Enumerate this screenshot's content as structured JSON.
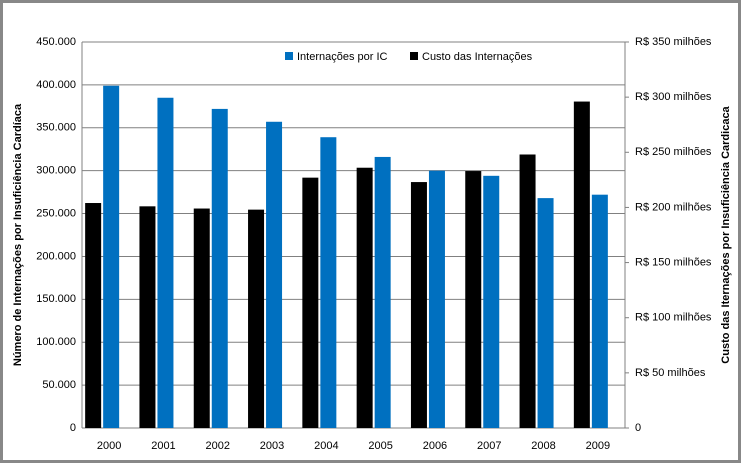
{
  "chart_data": {
    "type": "bar",
    "categories": [
      "2000",
      "2001",
      "2002",
      "2003",
      "2004",
      "2005",
      "2006",
      "2007",
      "2008",
      "2009"
    ],
    "series": [
      {
        "name": "Internações por IC",
        "color": "#0070c0",
        "values": [
          399000,
          385000,
          372000,
          357000,
          339000,
          316000,
          300000,
          294000,
          268000,
          272000
        ]
      },
      {
        "name": "Custo das Internações",
        "color": "#000000",
        "axis": "y2",
        "values": [
          204000000,
          201000000,
          199000000,
          198000000,
          227000000,
          236000000,
          223000000,
          233000000,
          248000000,
          296000000
        ]
      }
    ],
    "y_label": "Número de Internações por Insuficiência Cardíaca",
    "y2_label": "Custo das Iternações por Insuficiência Cardicaca",
    "ylim": [
      0,
      450000
    ],
    "yticks": [
      0,
      {
        "value": 50000,
        "label": "50.000"
      },
      {
        "value": 100000,
        "label": "100.000"
      },
      {
        "value": 150000,
        "label": "150.000"
      },
      {
        "value": 200000,
        "label": "200.000"
      },
      {
        "value": 250000,
        "label": "250.000"
      },
      {
        "value": 300000,
        "label": "300.000"
      },
      {
        "value": 350000,
        "label": "350.000"
      },
      {
        "value": 400000,
        "label": "400.000"
      },
      {
        "value": 450000,
        "label": "450.000"
      }
    ],
    "y2lim": [
      0,
      350000000
    ],
    "y2ticks": [
      0,
      {
        "value": 50000000,
        "label": "R$ 50 milhões"
      },
      {
        "value": 100000000,
        "label": "R$ 100 milhões"
      },
      {
        "value": 150000000,
        "label": "R$ 150 milhões"
      },
      {
        "value": 200000000,
        "label": "R$ 200 milhões"
      },
      {
        "value": 250000000,
        "label": "R$ 250 milhões"
      },
      {
        "value": 300000000,
        "label": "R$ 300 milhões"
      },
      {
        "value": 350000000,
        "label": "R$ 350 milhões"
      }
    ],
    "grid": true,
    "legend": "top"
  }
}
